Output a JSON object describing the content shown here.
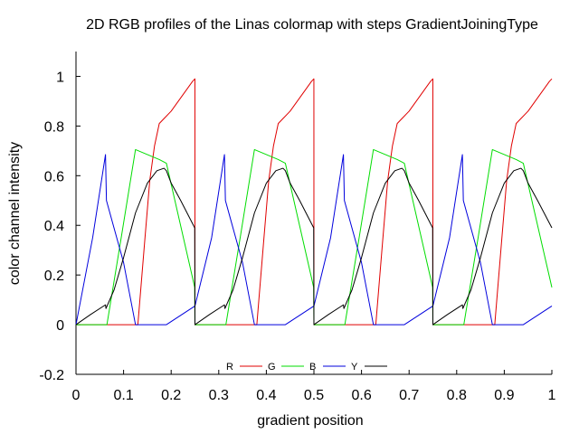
{
  "chart_data": {
    "type": "line",
    "title": "2D RGB profiles of the Linas colormap with steps GradientJoiningType",
    "xlabel": "gradient position",
    "ylabel": "color channel intensity",
    "xlim": [
      0,
      1
    ],
    "ylim": [
      -0.2,
      1.1
    ],
    "xticks": [
      "0",
      "0.1",
      "0.2",
      "0.3",
      "0.4",
      "0.5",
      "0.6",
      "0.7",
      "0.8",
      "0.9",
      "1"
    ],
    "yticks": [
      "-0.2",
      "0",
      "0.2",
      "0.4",
      "0.6",
      "0.8",
      "1"
    ],
    "grid": false,
    "legend_position": "bottom-center",
    "series": [
      {
        "name": "R",
        "color": "#e00000",
        "x": [
          0,
          0.13,
          0.145,
          0.155,
          0.165,
          0.175,
          0.185,
          0.2,
          0.215,
          0.23,
          0.245,
          0.2499,
          0.25,
          0.38,
          0.395,
          0.405,
          0.415,
          0.425,
          0.435,
          0.45,
          0.465,
          0.48,
          0.495,
          0.4999,
          0.5,
          0.63,
          0.645,
          0.655,
          0.665,
          0.675,
          0.685,
          0.7,
          0.715,
          0.73,
          0.745,
          0.7499,
          0.75,
          0.88,
          0.895,
          0.905,
          0.915,
          0.925,
          0.935,
          0.95,
          0.965,
          0.98,
          0.995,
          1
        ],
        "y": [
          0,
          0,
          0.35,
          0.58,
          0.72,
          0.81,
          0.83,
          0.86,
          0.9,
          0.94,
          0.98,
          0.99,
          0,
          0,
          0.35,
          0.58,
          0.72,
          0.81,
          0.83,
          0.86,
          0.9,
          0.94,
          0.98,
          0.99,
          0,
          0,
          0.35,
          0.58,
          0.72,
          0.81,
          0.83,
          0.86,
          0.9,
          0.94,
          0.98,
          0.99,
          0,
          0,
          0.35,
          0.58,
          0.72,
          0.81,
          0.83,
          0.86,
          0.9,
          0.94,
          0.98,
          0.99
        ]
      },
      {
        "name": "G",
        "color": "#00dd00",
        "x": [
          0,
          0.065,
          0.095,
          0.125,
          0.15,
          0.175,
          0.19,
          0.2495,
          0.25,
          0.315,
          0.345,
          0.375,
          0.4,
          0.425,
          0.44,
          0.4995,
          0.5,
          0.565,
          0.595,
          0.625,
          0.65,
          0.675,
          0.69,
          0.7495,
          0.75,
          0.815,
          0.845,
          0.875,
          0.9,
          0.925,
          0.94,
          1
        ],
        "y": [
          0,
          0,
          0.35,
          0.705,
          0.685,
          0.665,
          0.65,
          0.15,
          0,
          0,
          0.35,
          0.705,
          0.685,
          0.665,
          0.65,
          0.15,
          0,
          0,
          0.35,
          0.705,
          0.685,
          0.665,
          0.65,
          0.15,
          0,
          0,
          0.35,
          0.705,
          0.685,
          0.665,
          0.65,
          0.15
        ]
      },
      {
        "name": "B",
        "color": "#0000dd",
        "x": [
          0,
          0.035,
          0.062,
          0.064,
          0.1,
          0.125,
          0.19,
          0.25,
          0.285,
          0.312,
          0.314,
          0.35,
          0.375,
          0.44,
          0.5,
          0.535,
          0.562,
          0.564,
          0.6,
          0.625,
          0.69,
          0.75,
          0.785,
          0.812,
          0.814,
          0.85,
          0.875,
          0.94,
          1
        ],
        "y": [
          0,
          0.35,
          0.685,
          0.5,
          0.25,
          0,
          0,
          0.075,
          0.35,
          0.685,
          0.5,
          0.25,
          0,
          0,
          0.075,
          0.35,
          0.685,
          0.5,
          0.25,
          0,
          0,
          0.075,
          0.35,
          0.685,
          0.5,
          0.25,
          0,
          0,
          0.075
        ]
      },
      {
        "name": "Y",
        "color": "#000000",
        "x": [
          0,
          0.03,
          0.062,
          0.063,
          0.08,
          0.1,
          0.125,
          0.15,
          0.17,
          0.185,
          0.19,
          0.2,
          0.22,
          0.2495,
          0.25,
          0.28,
          0.312,
          0.313,
          0.33,
          0.35,
          0.375,
          0.4,
          0.42,
          0.435,
          0.44,
          0.45,
          0.47,
          0.4995,
          0.5,
          0.53,
          0.562,
          0.563,
          0.58,
          0.6,
          0.625,
          0.65,
          0.67,
          0.685,
          0.69,
          0.7,
          0.72,
          0.7495,
          0.75,
          0.78,
          0.812,
          0.813,
          0.83,
          0.85,
          0.875,
          0.9,
          0.92,
          0.935,
          0.94,
          0.95,
          0.97,
          1
        ],
        "y": [
          0,
          0.04,
          0.08,
          0.065,
          0.14,
          0.27,
          0.45,
          0.57,
          0.62,
          0.63,
          0.62,
          0.57,
          0.5,
          0.39,
          0,
          0.04,
          0.08,
          0.065,
          0.14,
          0.27,
          0.45,
          0.57,
          0.62,
          0.63,
          0.62,
          0.57,
          0.5,
          0.39,
          0,
          0.04,
          0.08,
          0.065,
          0.14,
          0.27,
          0.45,
          0.57,
          0.62,
          0.63,
          0.62,
          0.57,
          0.5,
          0.39,
          0,
          0.04,
          0.08,
          0.065,
          0.14,
          0.27,
          0.45,
          0.57,
          0.62,
          0.63,
          0.62,
          0.57,
          0.5,
          0.39
        ]
      }
    ]
  }
}
